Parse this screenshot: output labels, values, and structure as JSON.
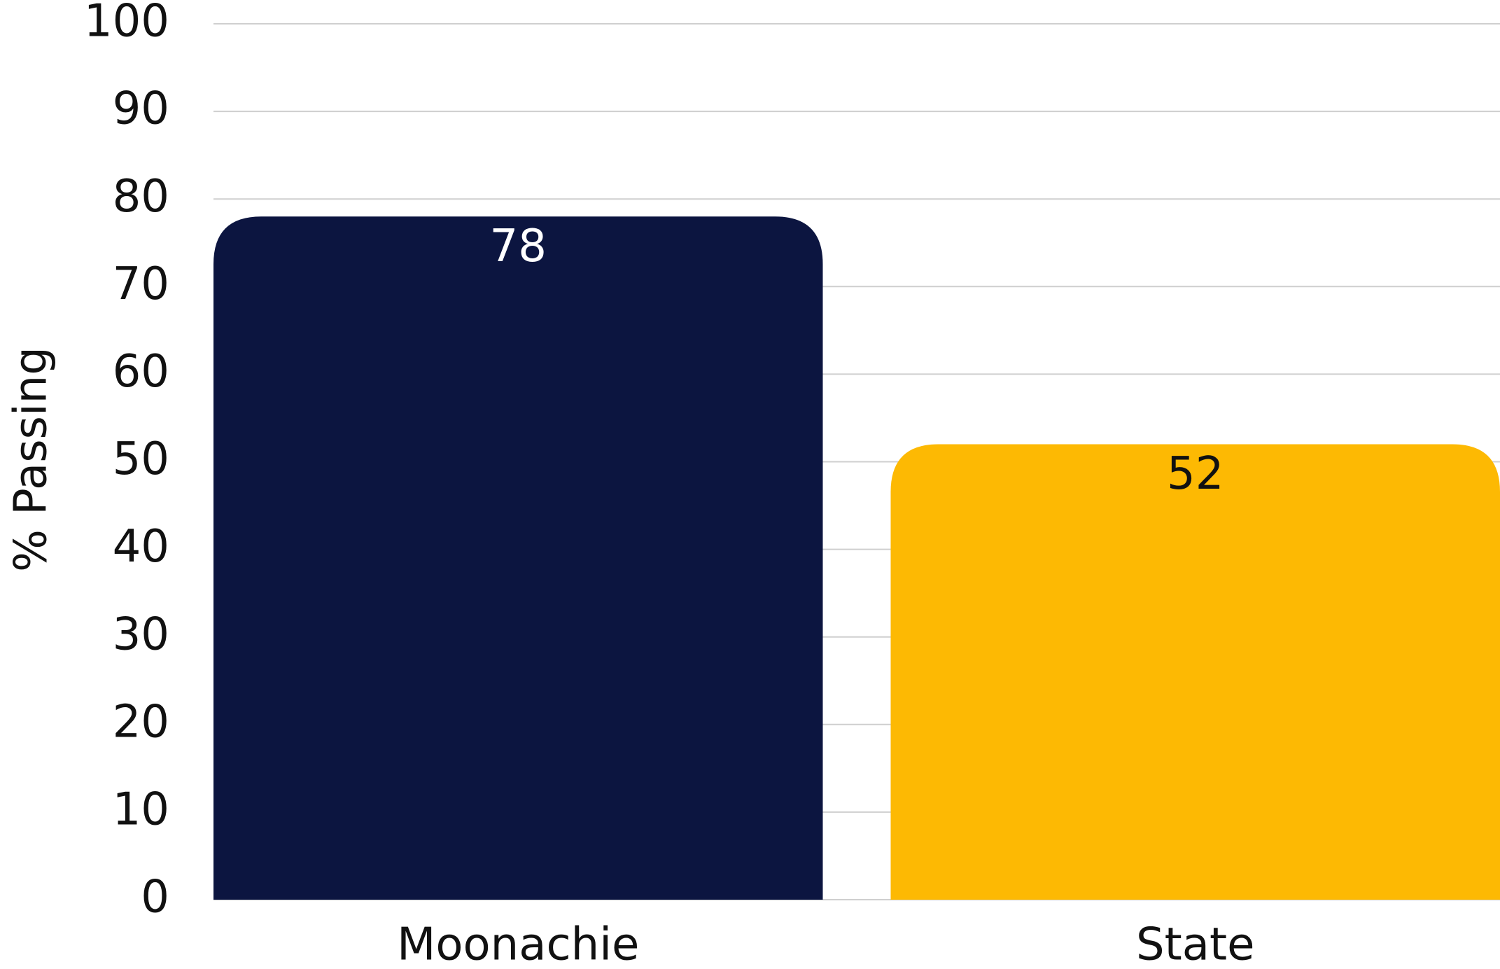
{
  "chart_data": {
    "type": "bar",
    "ylabel": "% Passing",
    "categories": [
      "Moonachie",
      "State"
    ],
    "values": [
      78,
      52
    ],
    "colors": [
      "#0c1540",
      "#fdb903"
    ],
    "ylim": [
      0,
      100
    ],
    "yticks": [
      0,
      10,
      20,
      30,
      40,
      50,
      60,
      70,
      80,
      90,
      100
    ],
    "grid": true
  }
}
